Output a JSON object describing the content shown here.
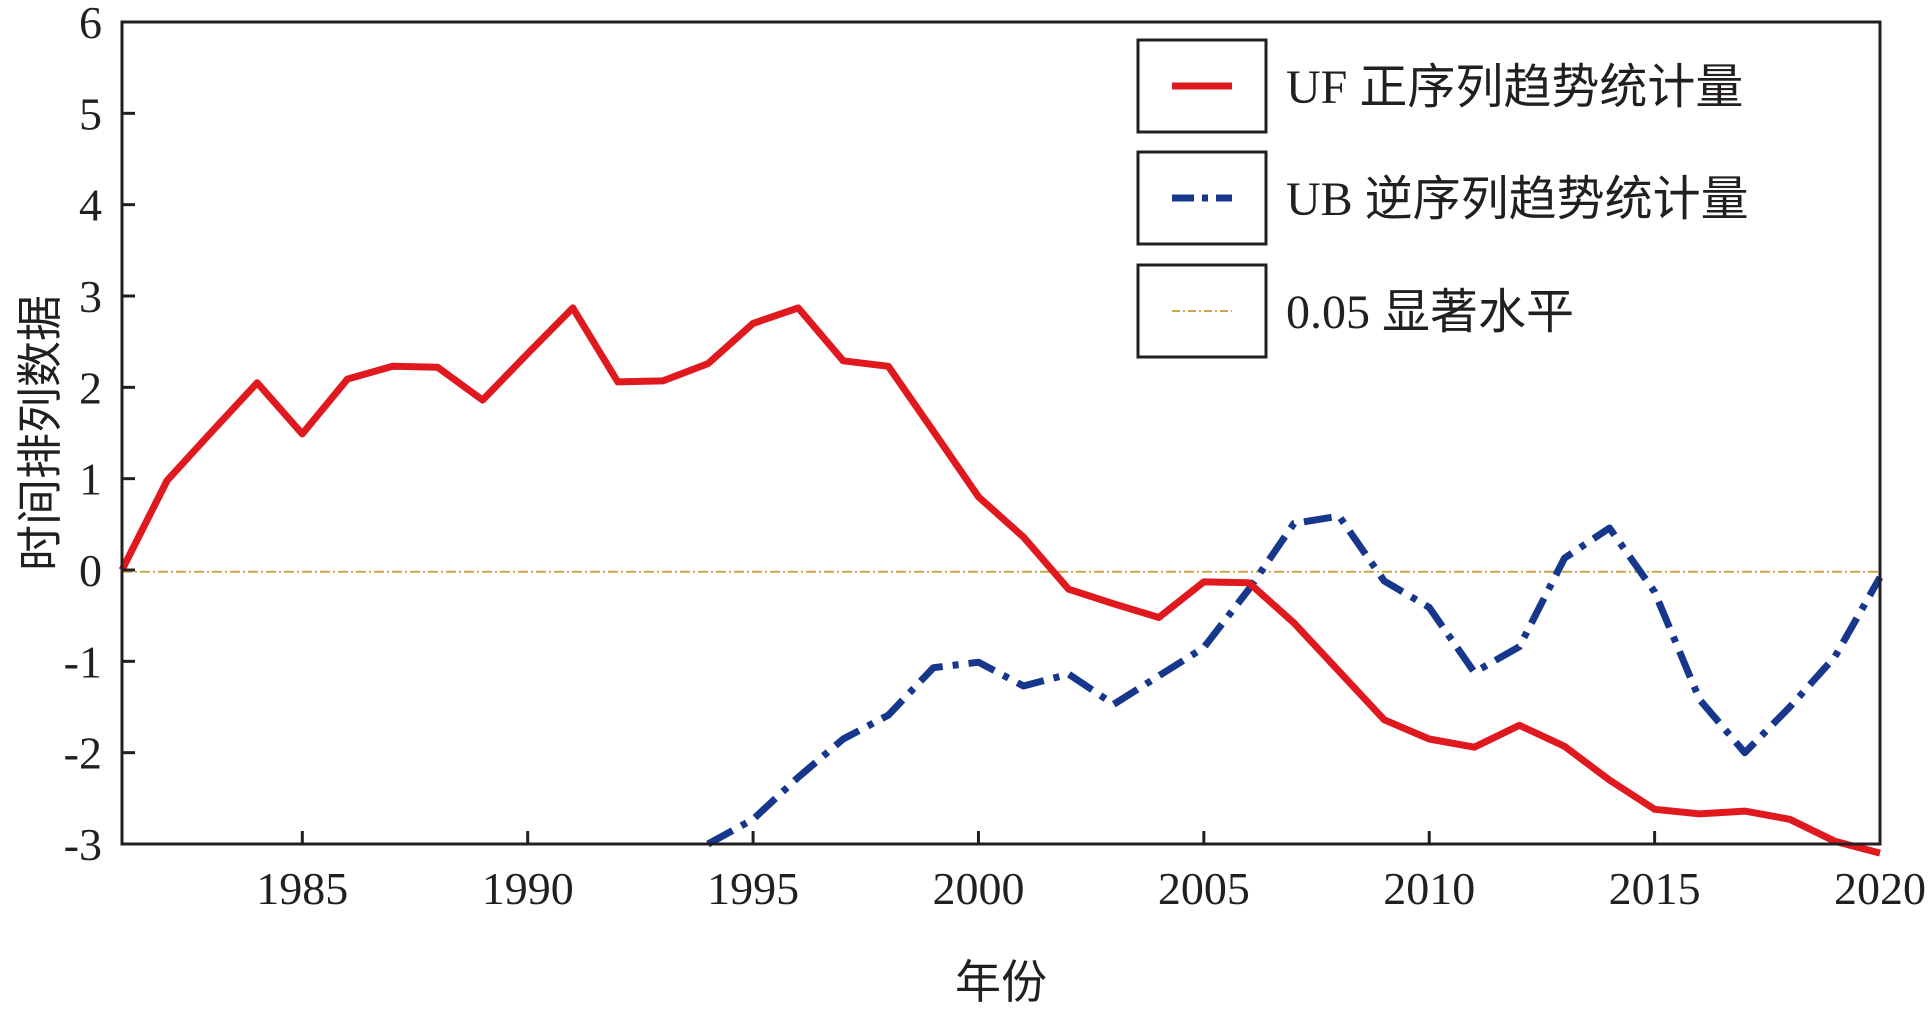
{
  "chart_data": {
    "type": "line",
    "title": "",
    "xlabel": "年份",
    "ylabel": "时间排列数据",
    "xlim": [
      1981,
      2020
    ],
    "ylim": [
      -3,
      6
    ],
    "x_ticks": [
      1985,
      1990,
      1995,
      2000,
      2005,
      2010,
      2015,
      2020
    ],
    "y_ticks": [
      -3,
      -2,
      -1,
      0,
      1,
      2,
      3,
      4,
      5,
      6
    ],
    "x_tick_labels": [
      "1985",
      "1990",
      "1995",
      "2000",
      "2005",
      "2010",
      "2015",
      "2020"
    ],
    "y_tick_labels": [
      "-3",
      "-2",
      "-1",
      "0",
      "1",
      "2",
      "3",
      "4",
      "5",
      "6"
    ],
    "grid": false,
    "legend_position": "top-right",
    "series": [
      {
        "name": "UF 正序列趋势统计量",
        "color": "#e0191f",
        "style": "solid",
        "x": [
          1981,
          1982,
          1983,
          1984,
          1985,
          1986,
          1987,
          1988,
          1989,
          1990,
          1991,
          1992,
          1993,
          1994,
          1995,
          1996,
          1997,
          1998,
          1999,
          2000,
          2001,
          2002,
          2003,
          2004,
          2005,
          2006,
          2007,
          2008,
          2009,
          2010,
          2011,
          2012,
          2013,
          2014,
          2015,
          2016,
          2017,
          2018,
          2019,
          2020
        ],
        "values": [
          0.0,
          0.98,
          1.52,
          2.05,
          1.49,
          2.09,
          2.23,
          2.22,
          1.86,
          2.37,
          2.87,
          2.06,
          2.07,
          2.26,
          2.7,
          2.87,
          2.29,
          2.23,
          1.52,
          0.8,
          0.36,
          -0.21,
          -0.37,
          -0.52,
          -0.13,
          -0.14,
          -0.58,
          -1.11,
          -1.64,
          -1.85,
          -1.94,
          -1.7,
          -1.93,
          -2.3,
          -2.62,
          -2.67,
          -2.64,
          -2.73,
          -2.97,
          -3.1
        ]
      },
      {
        "name": "UB 逆序列趋势统计量",
        "color": "#16378c",
        "style": "dash-dot",
        "x": [
          1994,
          1995,
          1996,
          1997,
          1998,
          1999,
          2000,
          2001,
          2002,
          2003,
          2004,
          2005,
          2006,
          2007,
          2008,
          2009,
          2010,
          2011,
          2012,
          2013,
          2014,
          2015,
          2016,
          2017,
          2018,
          2019,
          2020
        ],
        "values": [
          -3.0,
          -2.73,
          -2.27,
          -1.85,
          -1.59,
          -1.07,
          -1.01,
          -1.27,
          -1.14,
          -1.47,
          -1.16,
          -0.85,
          -0.21,
          0.51,
          0.59,
          -0.12,
          -0.41,
          -1.12,
          -0.84,
          0.13,
          0.46,
          -0.24,
          -1.42,
          -2.0,
          -1.5,
          -0.95,
          -0.08
        ]
      },
      {
        "name": "0.05 显著水平",
        "color": "#c8a84b",
        "style": "dash-dot-thin",
        "x": [
          1981,
          2020
        ],
        "values": [
          -0.02,
          -0.02
        ]
      }
    ]
  }
}
